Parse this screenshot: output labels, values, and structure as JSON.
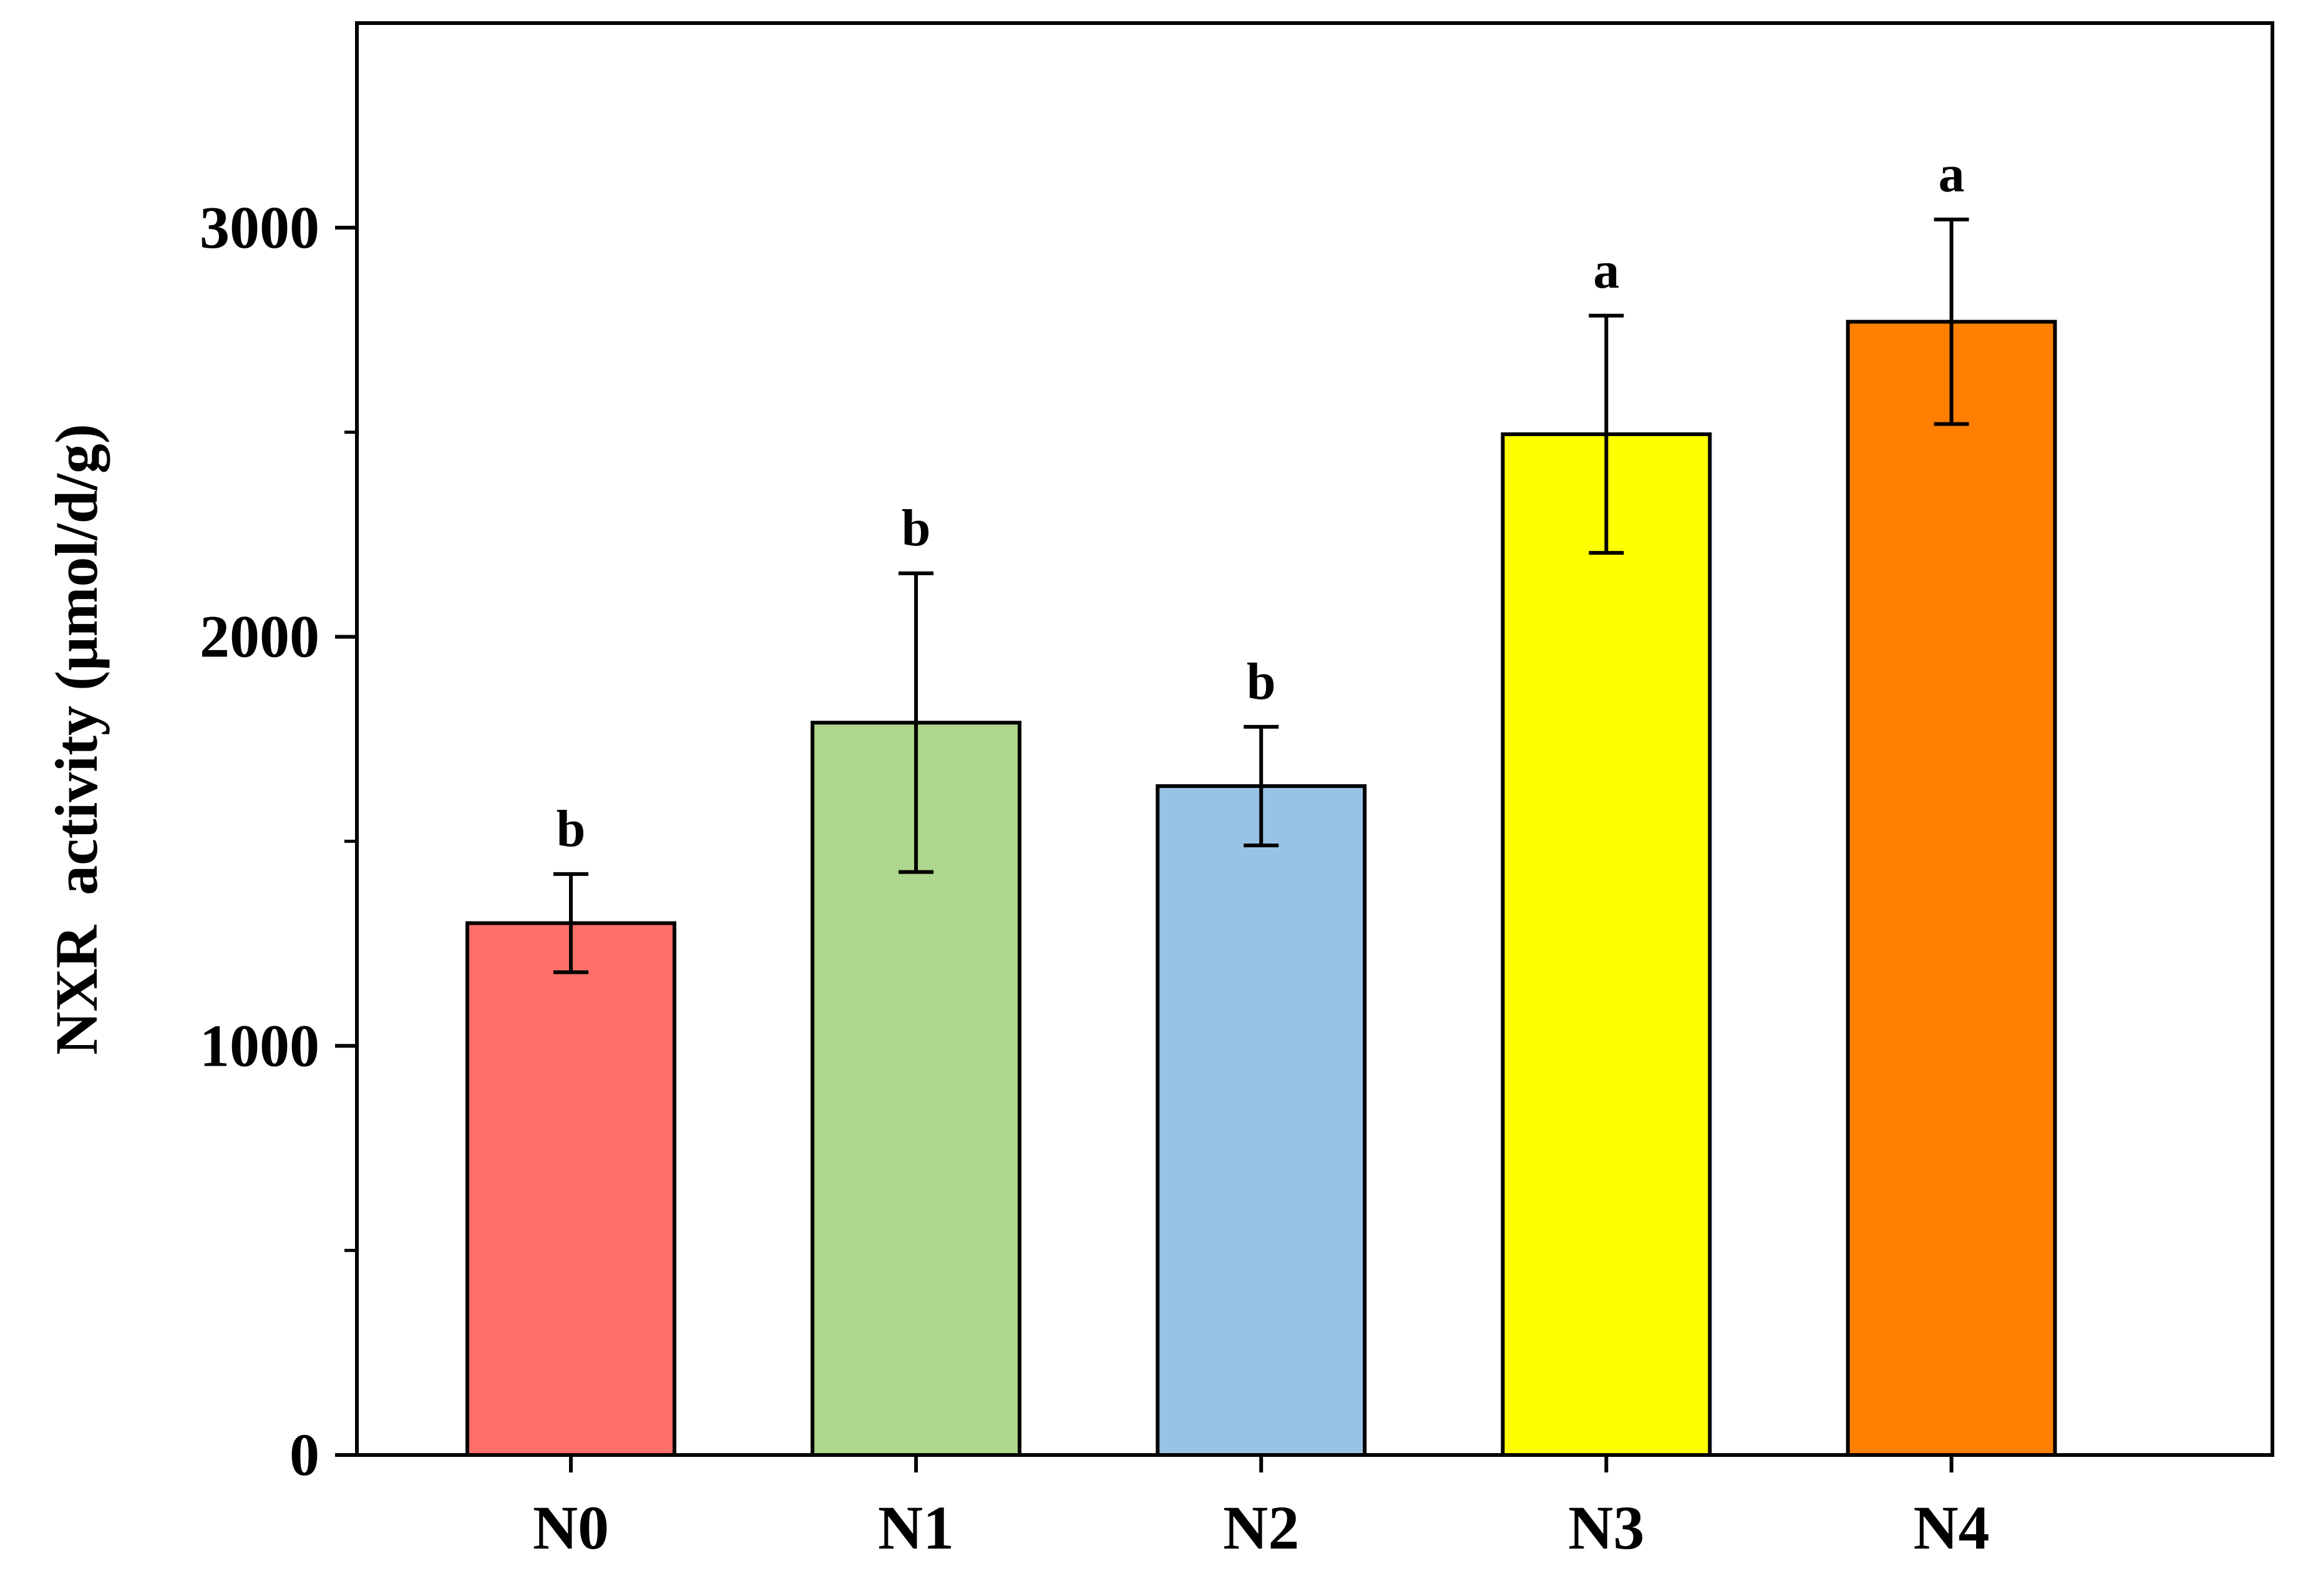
{
  "chart_data": {
    "type": "bar",
    "title": "",
    "xlabel": "",
    "ylabel": "NXR  activity (μmol/d/g)",
    "ylim": [
      0,
      3500
    ],
    "yticks": [
      0,
      1000,
      2000,
      3000
    ],
    "ytick_labels": [
      "0",
      "1000",
      "2000",
      "3000"
    ],
    "categories": [
      "N0",
      "N1",
      "N2",
      "N3",
      "N4"
    ],
    "values": [
      1300,
      1790,
      1635,
      2495,
      2770
    ],
    "errors": [
      120,
      365,
      145,
      290,
      250
    ],
    "significance": [
      "b",
      "b",
      "b",
      "a",
      "a"
    ],
    "colors": [
      "#FF6F69",
      "#AED68C",
      "#99C3E6",
      "#FFFF00",
      "#FF8000"
    ],
    "grid": false,
    "legend": "none"
  }
}
